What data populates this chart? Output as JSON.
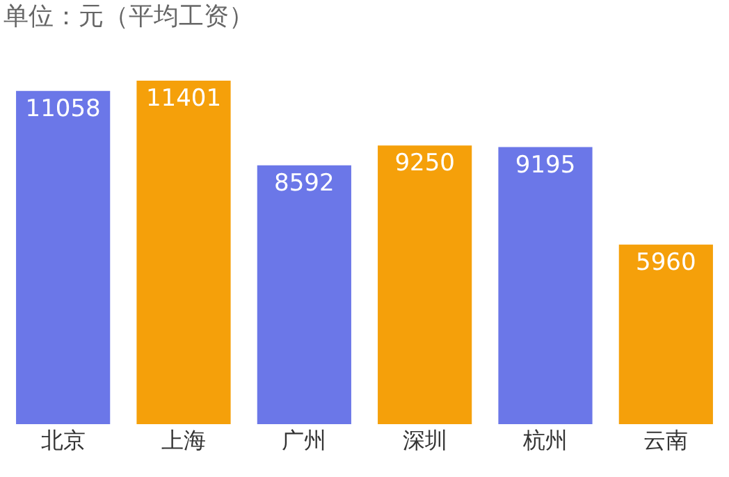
{
  "chart_data": {
    "type": "bar",
    "title": "单位：元（平均工资）",
    "categories": [
      "北京",
      "上海",
      "广州",
      "深圳",
      "杭州",
      "云南"
    ],
    "values": [
      11058,
      11401,
      8592,
      9250,
      9195,
      5960
    ],
    "colors": [
      "#6b77e8",
      "#f5a00a",
      "#6b77e8",
      "#f5a00a",
      "#6b77e8",
      "#f5a00a"
    ],
    "ylim": [
      0,
      11401
    ],
    "data_labels": true
  }
}
